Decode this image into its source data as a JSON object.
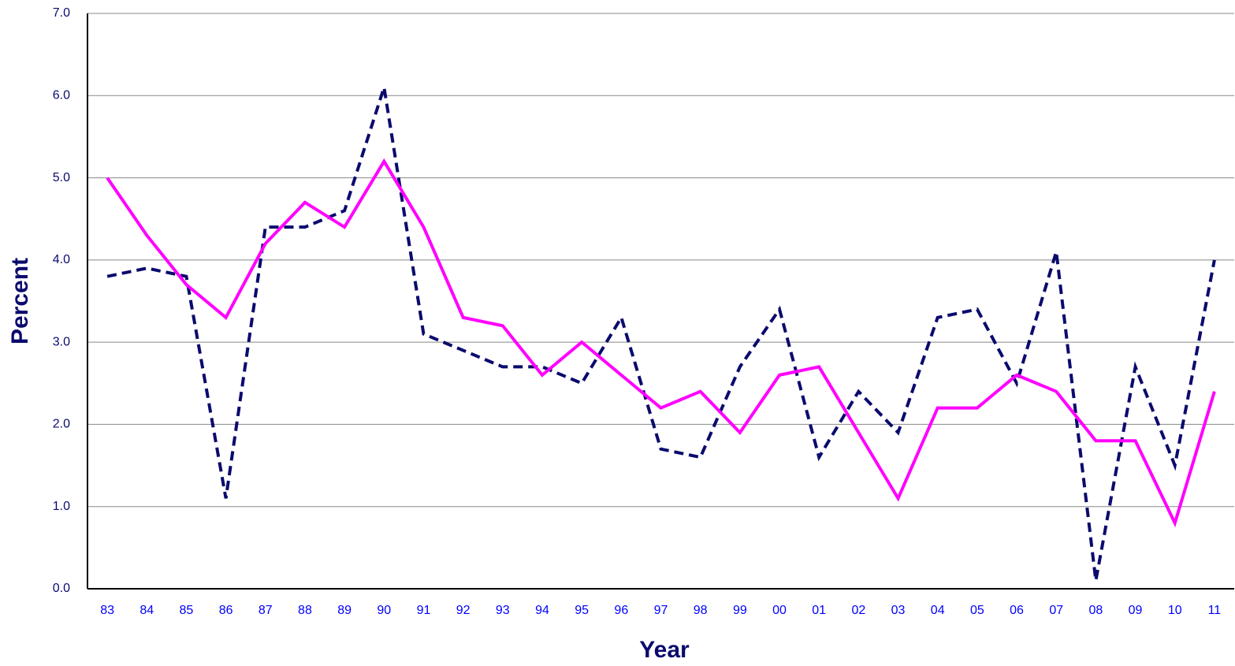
{
  "chart_data": {
    "type": "line",
    "x_label": "Year",
    "y_label": "Percent",
    "categories": [
      "83",
      "84",
      "85",
      "86",
      "87",
      "88",
      "89",
      "90",
      "91",
      "92",
      "93",
      "94",
      "95",
      "96",
      "97",
      "98",
      "99",
      "00",
      "01",
      "02",
      "03",
      "04",
      "05",
      "06",
      "07",
      "08",
      "09",
      "10",
      "11"
    ],
    "series": [
      {
        "color": "#0a0a6e",
        "dashed": true,
        "values": [
          3.8,
          3.9,
          3.8,
          1.1,
          4.4,
          4.4,
          4.6,
          6.1,
          3.1,
          2.9,
          2.7,
          2.7,
          2.5,
          3.3,
          1.7,
          1.6,
          2.7,
          3.4,
          1.6,
          2.4,
          1.9,
          3.3,
          3.4,
          2.5,
          4.1,
          0.1,
          2.7,
          1.5,
          4.0
        ]
      },
      {
        "color": "#ff00ff",
        "dashed": false,
        "values": [
          5.0,
          4.3,
          3.7,
          3.3,
          4.2,
          4.7,
          4.4,
          5.2,
          4.4,
          3.3,
          3.2,
          2.6,
          3.0,
          2.6,
          2.2,
          2.4,
          1.9,
          2.6,
          2.7,
          1.9,
          1.1,
          2.2,
          2.2,
          2.6,
          2.4,
          1.8,
          1.8,
          0.8,
          2.4
        ]
      }
    ],
    "ylim": [
      0,
      7
    ],
    "yticks": [
      {
        "value": 0,
        "label": "0.0"
      },
      {
        "value": 1,
        "label": "1.0"
      },
      {
        "value": 2,
        "label": "2.0"
      },
      {
        "value": 3,
        "label": "3.0"
      },
      {
        "value": 4,
        "label": "4.0"
      },
      {
        "value": 5,
        "label": "5.0"
      },
      {
        "value": 6,
        "label": "6.0"
      },
      {
        "value": 7,
        "label": "7.0"
      }
    ],
    "grid": true
  }
}
